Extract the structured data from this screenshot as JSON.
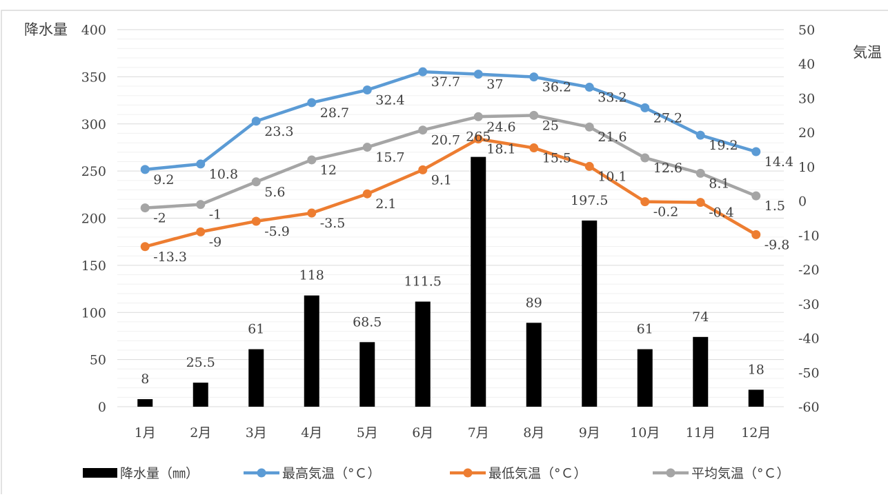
{
  "chart_data": {
    "type": "bar+line",
    "categories": [
      "1月",
      "2月",
      "3月",
      "4月",
      "5月",
      "6月",
      "7月",
      "8月",
      "9月",
      "10月",
      "11月",
      "12月"
    ],
    "left_axis": {
      "label": "降水量",
      "ylim": [
        0,
        400
      ],
      "ticks": [
        "0",
        "50",
        "100",
        "150",
        "200",
        "250",
        "300",
        "350",
        "400"
      ]
    },
    "right_axis": {
      "label": "気温",
      "ylim": [
        -60,
        50
      ],
      "ticks": [
        "-60",
        "-50",
        "-40",
        "-30",
        "-20",
        "-10",
        "0",
        "10",
        "20",
        "30",
        "40",
        "50"
      ]
    },
    "grid": true,
    "legend_position": "bottom",
    "series": [
      {
        "name": "降水量（㎜）",
        "kind": "bar",
        "axis": "left",
        "color": "#000000",
        "values": [
          8,
          25.5,
          61,
          118,
          68.5,
          111.5,
          265,
          89,
          197.5,
          61,
          74,
          18
        ],
        "labels": [
          "8",
          "25.5",
          "61",
          "118",
          "68.5",
          "111.5",
          "265",
          "89",
          "197.5",
          "61",
          "74",
          "18"
        ]
      },
      {
        "name": "最高気温（°Ｃ）",
        "kind": "line",
        "axis": "right",
        "color": "#5B9BD5",
        "values": [
          9.2,
          10.8,
          23.3,
          28.7,
          32.4,
          37.7,
          37,
          36.2,
          33.2,
          27.2,
          19.2,
          14.4
        ],
        "labels": [
          "9.2",
          "10.8",
          "23.3",
          "28.7",
          "32.4",
          "37.7",
          "37",
          "36.2",
          "33.2",
          "27.2",
          "19.2",
          "14.4"
        ]
      },
      {
        "name": "最低気温（°Ｃ）",
        "kind": "line",
        "axis": "right",
        "color": "#ED7D31",
        "values": [
          -13.3,
          -9,
          -5.9,
          -3.5,
          2.1,
          9.1,
          18.1,
          15.5,
          10.1,
          -0.2,
          -0.4,
          -9.8
        ],
        "labels": [
          "-13.3",
          "-9",
          "-5.9",
          "-3.5",
          "2.1",
          "9.1",
          "18.1",
          "15.5",
          "10.1",
          "-0.2",
          "-0.4",
          "-9.8"
        ]
      },
      {
        "name": "平均気温（°Ｃ）",
        "kind": "line",
        "axis": "right",
        "color": "#A5A5A5",
        "values": [
          -2,
          -1,
          5.6,
          12,
          15.7,
          20.7,
          24.6,
          25,
          21.6,
          12.6,
          8.1,
          1.5
        ],
        "labels": [
          "-2",
          "-1",
          "5.6",
          "12",
          "15.7",
          "20.7",
          "24.6",
          "25",
          "21.6",
          "12.6",
          "8.1",
          "1.5"
        ]
      }
    ]
  }
}
